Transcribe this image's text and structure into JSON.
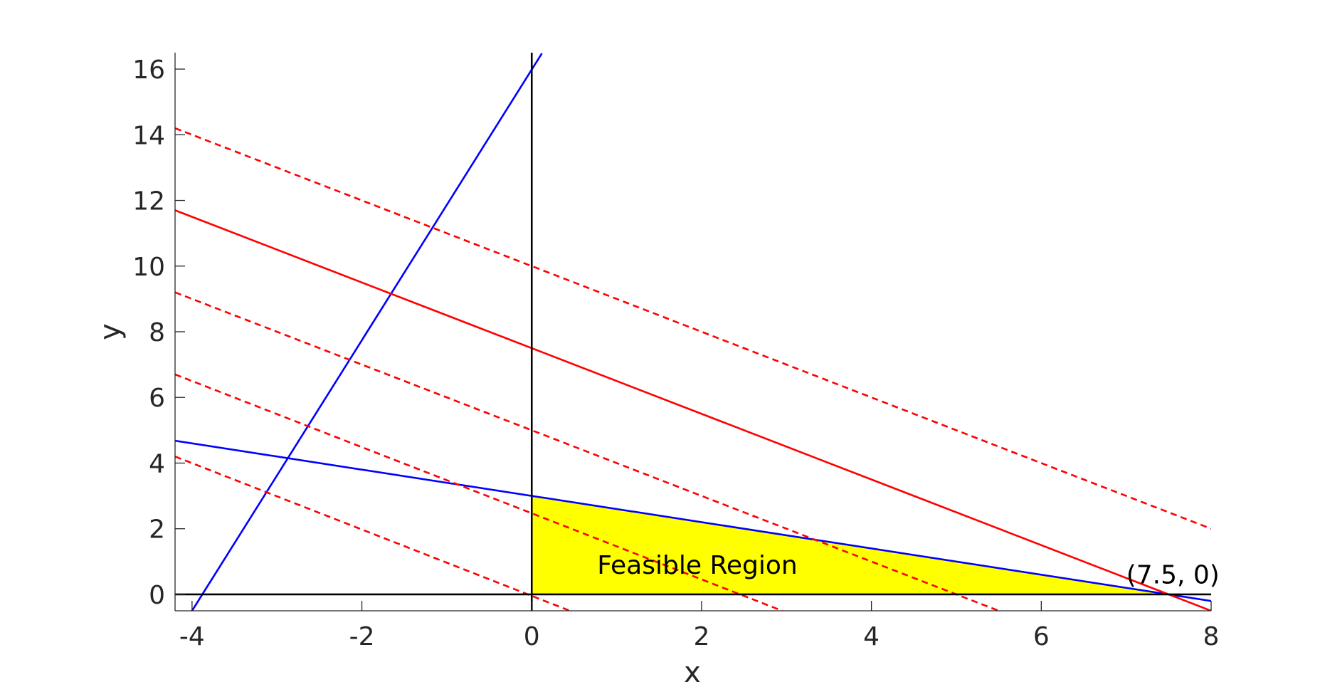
{
  "chart_data": {
    "type": "line",
    "title": "",
    "xlabel": "x",
    "ylabel": "y",
    "xlim": [
      -4.2,
      8
    ],
    "ylim": [
      -0.5,
      16.5
    ],
    "xticks": [
      -4,
      -2,
      0,
      2,
      4,
      6,
      8
    ],
    "yticks": [
      0,
      2,
      4,
      6,
      8,
      10,
      12,
      14,
      16
    ],
    "xtick_labels": [
      "-4",
      "-2",
      "0",
      "2",
      "4",
      "6",
      "8"
    ],
    "ytick_labels": [
      "0",
      "2",
      "4",
      "6",
      "8",
      "10",
      "12",
      "14",
      "16"
    ],
    "grid": false,
    "feasible_region": {
      "label": "Feasible Region",
      "color": "#ffff00",
      "vertices": [
        [
          0,
          0
        ],
        [
          0,
          3
        ],
        [
          7.5,
          0
        ]
      ]
    },
    "annotations": [
      {
        "text": "(7.5, 0)",
        "x": 7.55,
        "y": 0.6
      }
    ],
    "axes_lines": {
      "color": "#000000"
    },
    "series": [
      {
        "color": "#0000ff",
        "style": "solid",
        "x": [
          -4.0,
          0.12
        ],
        "y": [
          -0.5,
          16.48
        ]
      },
      {
        "color": "#0000ff",
        "style": "solid",
        "x": [
          -4.2,
          8.0
        ],
        "y": [
          4.68,
          -0.2
        ]
      },
      {
        "color": "#ff0000",
        "style": "solid",
        "x": [
          -4.2,
          8.0
        ],
        "y": [
          11.7,
          -0.5
        ]
      },
      {
        "color": "#ff0000",
        "style": "dashed",
        "x": [
          -4.2,
          8.0
        ],
        "y": [
          14.2,
          2.0
        ]
      },
      {
        "color": "#ff0000",
        "style": "dashed",
        "x": [
          -4.2,
          5.5
        ],
        "y": [
          9.2,
          -0.5
        ]
      },
      {
        "color": "#ff0000",
        "style": "dashed",
        "x": [
          -4.2,
          2.95
        ],
        "y": [
          6.7,
          -0.5
        ]
      },
      {
        "color": "#ff0000",
        "style": "dashed",
        "x": [
          -4.2,
          0.45
        ],
        "y": [
          4.2,
          -0.5
        ]
      }
    ]
  }
}
